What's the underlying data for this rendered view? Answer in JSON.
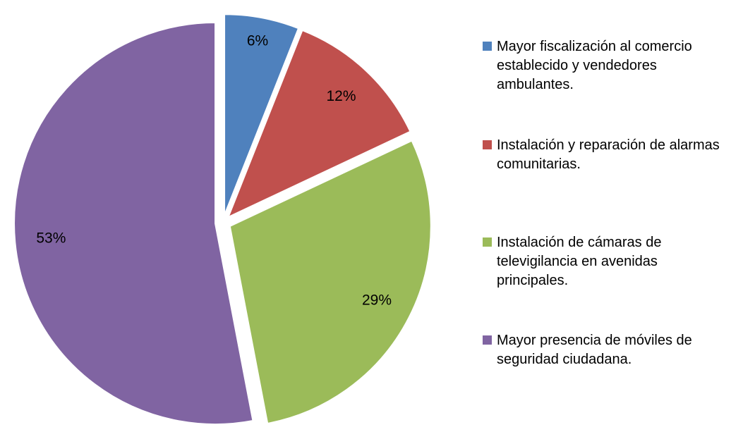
{
  "chart_data": {
    "type": "pie",
    "categories": [
      "Mayor fiscalización al comercio establecido y vendedores ambulantes.",
      "Instalación y reparación de alarmas comunitarias.",
      "Instalación de cámaras de televigilancia en avenidas principales.",
      "Mayor presencia de móviles de seguridad ciudadana."
    ],
    "values": [
      6,
      12,
      29,
      53
    ],
    "value_labels": [
      "6%",
      "12%",
      "29%",
      "53%"
    ],
    "colors": [
      "#4f81bd",
      "#c0504d",
      "#9bbb59",
      "#8064a2"
    ],
    "legend": "right"
  }
}
